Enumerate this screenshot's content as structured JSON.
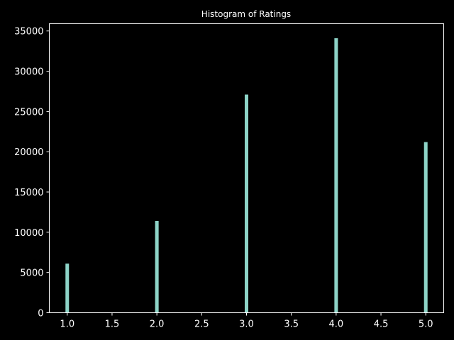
{
  "chart_data": {
    "type": "bar",
    "title": "Histogram of Ratings",
    "xlabel": "",
    "ylabel": "",
    "x": [
      1.0,
      2.0,
      3.0,
      4.0,
      5.0
    ],
    "values": [
      6100,
      11400,
      27100,
      34100,
      21200
    ],
    "xlim": [
      0.8,
      5.2
    ],
    "ylim": [
      0,
      35900
    ],
    "xticks": [
      "1.0",
      "1.5",
      "2.0",
      "2.5",
      "3.0",
      "3.5",
      "4.0",
      "4.5",
      "5.0"
    ],
    "xtick_values": [
      1.0,
      1.5,
      2.0,
      2.5,
      3.0,
      3.5,
      4.0,
      4.5,
      5.0
    ],
    "yticks": [
      "0",
      "5000",
      "10000",
      "15000",
      "20000",
      "25000",
      "30000",
      "35000"
    ],
    "ytick_values": [
      0,
      5000,
      10000,
      15000,
      20000,
      25000,
      30000,
      35000
    ],
    "bar_color": "#8dd3c7",
    "background_color": "#000000",
    "axis_color": "#ffffff",
    "grid": false,
    "legend": "none"
  }
}
